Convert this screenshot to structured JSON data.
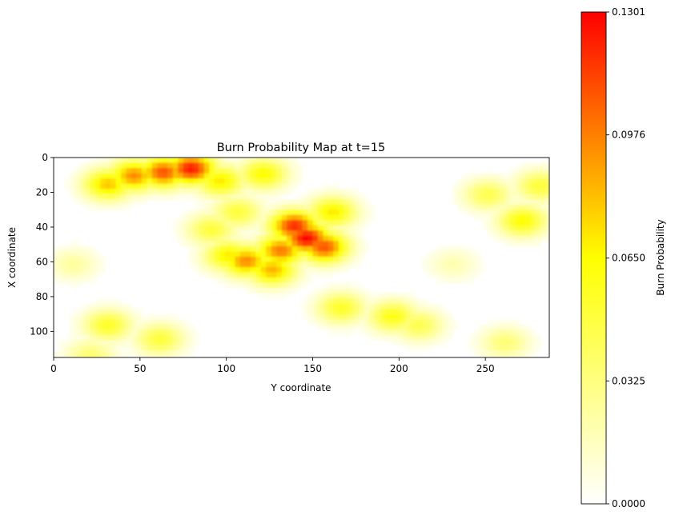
{
  "chart_data": {
    "type": "heatmap",
    "title": "Burn Probability Map at t=15",
    "xlabel": "Y coordinate",
    "ylabel": "X coordinate",
    "xlim": [
      0,
      287
    ],
    "ylim": [
      115,
      0
    ],
    "x_ticks": [
      0,
      50,
      100,
      150,
      200,
      250
    ],
    "y_ticks": [
      0,
      20,
      40,
      60,
      80,
      100
    ],
    "colormap": "autumn_r",
    "colorbar": {
      "label": "Burn Probability",
      "range": [
        0.0,
        0.1301
      ],
      "ticks": [
        0.0,
        0.0325,
        0.065,
        0.0976,
        0.1301
      ],
      "tick_labels": [
        "0.0000",
        "0.0325",
        "0.0650",
        "0.0976",
        "0.1301"
      ],
      "colors": [
        "#ffffff",
        "#ffff00",
        "#ff0000"
      ]
    },
    "hotspots": [
      {
        "x": 78,
        "y": 5,
        "value": 0.125
      },
      {
        "x": 62,
        "y": 7,
        "value": 0.11
      },
      {
        "x": 45,
        "y": 9,
        "value": 0.095
      },
      {
        "x": 30,
        "y": 14,
        "value": 0.08
      },
      {
        "x": 95,
        "y": 12,
        "value": 0.07
      },
      {
        "x": 120,
        "y": 8,
        "value": 0.065
      },
      {
        "x": 145,
        "y": 45,
        "value": 0.13
      },
      {
        "x": 138,
        "y": 38,
        "value": 0.12
      },
      {
        "x": 155,
        "y": 50,
        "value": 0.11
      },
      {
        "x": 130,
        "y": 52,
        "value": 0.1
      },
      {
        "x": 110,
        "y": 58,
        "value": 0.095
      },
      {
        "x": 125,
        "y": 63,
        "value": 0.085
      },
      {
        "x": 100,
        "y": 55,
        "value": 0.07
      },
      {
        "x": 160,
        "y": 30,
        "value": 0.07
      },
      {
        "x": 105,
        "y": 30,
        "value": 0.05
      },
      {
        "x": 90,
        "y": 40,
        "value": 0.05
      },
      {
        "x": 165,
        "y": 85,
        "value": 0.055
      },
      {
        "x": 195,
        "y": 90,
        "value": 0.06
      },
      {
        "x": 210,
        "y": 95,
        "value": 0.045
      },
      {
        "x": 30,
        "y": 95,
        "value": 0.055
      },
      {
        "x": 60,
        "y": 103,
        "value": 0.05
      },
      {
        "x": 20,
        "y": 112,
        "value": 0.035
      },
      {
        "x": 270,
        "y": 35,
        "value": 0.065
      },
      {
        "x": 280,
        "y": 15,
        "value": 0.05
      },
      {
        "x": 250,
        "y": 20,
        "value": 0.045
      },
      {
        "x": 260,
        "y": 105,
        "value": 0.035
      },
      {
        "x": 10,
        "y": 60,
        "value": 0.025
      },
      {
        "x": 230,
        "y": 60,
        "value": 0.02
      }
    ]
  }
}
